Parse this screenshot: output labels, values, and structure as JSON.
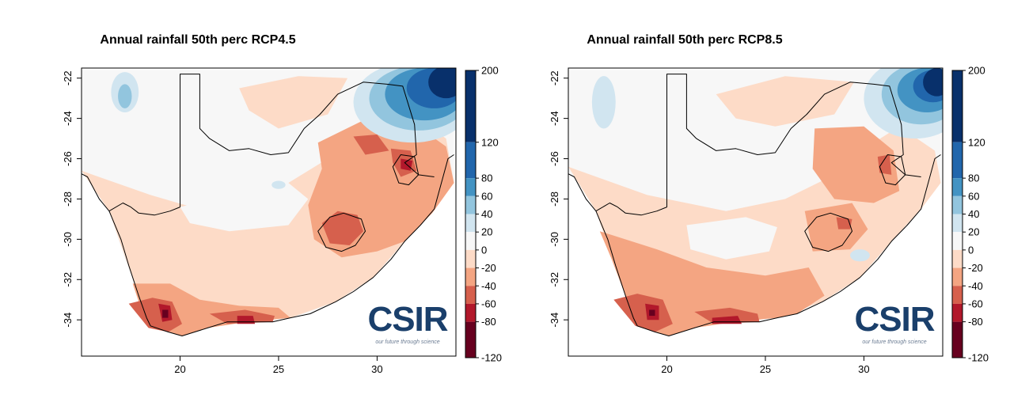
{
  "panels": [
    {
      "title": "Annual rainfall 50th perc RCP4.5",
      "scenario": "rcp45",
      "x_ticks": [
        "20",
        "25",
        "30"
      ],
      "y_ticks": [
        "-22",
        "-24",
        "-26",
        "-28",
        "-30",
        "-32",
        "-34"
      ],
      "logo": {
        "text": "CSIR",
        "tagline": "our future through science"
      }
    },
    {
      "title": "Annual rainfall 50th perc RCP8.5",
      "scenario": "rcp85",
      "x_ticks": [
        "20",
        "25",
        "30"
      ],
      "y_ticks": [
        "-22",
        "-24",
        "-26",
        "-28",
        "-30",
        "-32",
        "-34"
      ],
      "logo": {
        "text": "CSIR",
        "tagline": "our future through science"
      }
    }
  ],
  "legend": {
    "labels": [
      "200",
      "120",
      "80",
      "60",
      "40",
      "20",
      "0",
      "-20",
      "-40",
      "-60",
      "-80",
      "-120"
    ],
    "colors": [
      "#08306b",
      "#2166ac",
      "#4393c3",
      "#92c5de",
      "#d1e5f0",
      "#f7f7f7",
      "#fddbc7",
      "#f4a582",
      "#d6604d",
      "#b2182b",
      "#67001f"
    ]
  },
  "map": {
    "lon_range": [
      15.0,
      34.0
    ],
    "lat_range": [
      -35.8,
      -21.5
    ],
    "logo_color": "#1a3f6b"
  }
}
